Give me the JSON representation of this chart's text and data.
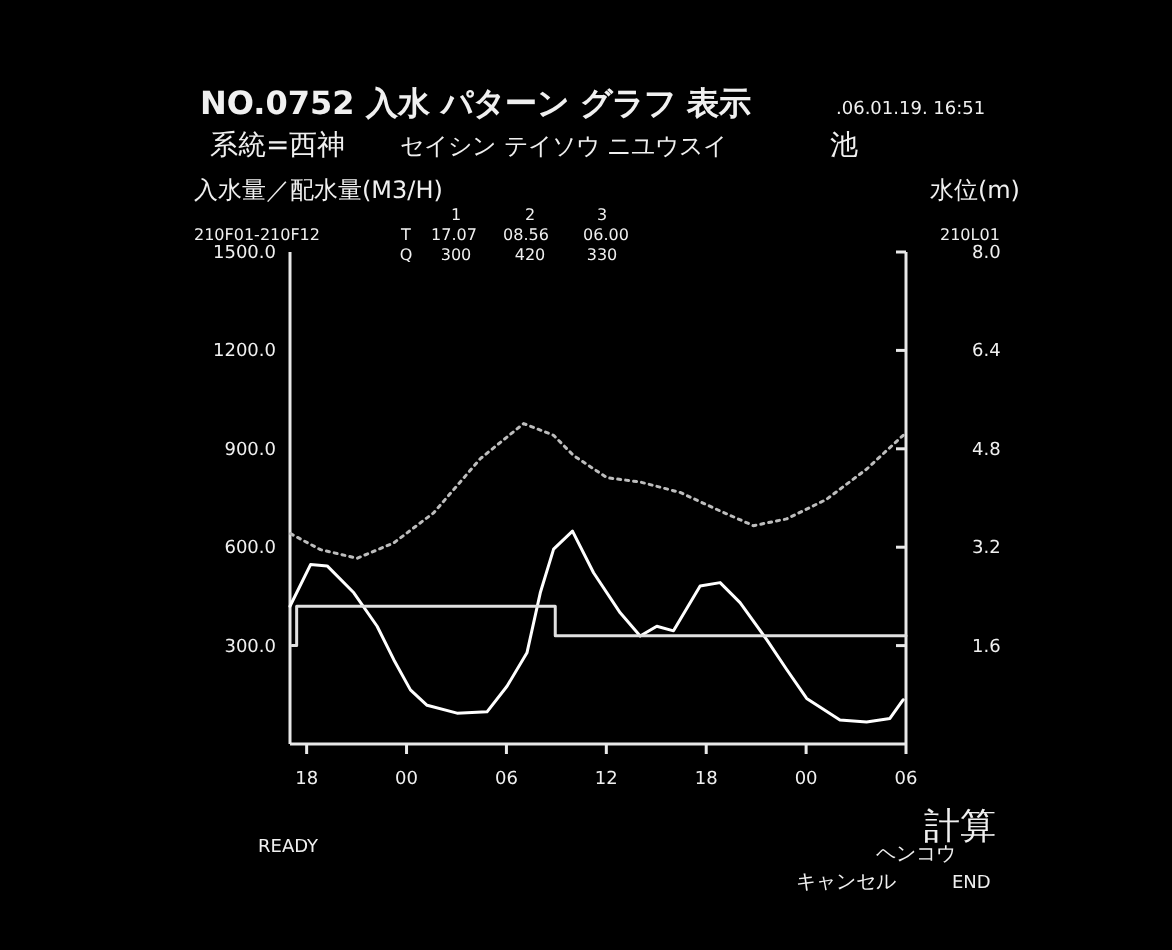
{
  "chart_data": {
    "type": "line",
    "title": "NO.0752 入水 パターン グラフ 表示",
    "subtitle": "系統=西神",
    "ylabel": "入水量／配水量(M3/H)",
    "y2label": "水位(m)",
    "xlim": [
      "--01-19T17:00",
      "--01-21T06:00"
    ],
    "xticks": [
      {
        "value": "--01-19T18:00",
        "label": "18"
      },
      {
        "value": "--01-20T00:00",
        "label": "00"
      },
      {
        "value": "--01-20T06:00",
        "label": "06"
      },
      {
        "value": "--01-20T12:00",
        "label": "12"
      },
      {
        "value": "--01-20T18:00",
        "label": "18"
      },
      {
        "value": "--01-21T00:00",
        "label": "00"
      },
      {
        "value": "--01-21T06:00",
        "label": "06"
      }
    ],
    "ylim": [
      0,
      1500
    ],
    "yticks": [
      {
        "value": 300,
        "label": "300.0"
      },
      {
        "value": 600,
        "label": "600.0"
      },
      {
        "value": 900,
        "label": "900.0"
      },
      {
        "value": 1200,
        "label": "1200.0"
      },
      {
        "value": 1500,
        "label": "1500.0"
      }
    ],
    "y2lim": [
      0,
      8
    ],
    "y2ticks": [
      1.6,
      3.2,
      4.8,
      6.4,
      {
        "value": 8,
        "label": "8.0"
      }
    ],
    "series": [
      {
        "type": "line",
        "color": "#ffffff",
        "x": [
          "--01-19T17:00",
          "--01-19T18:14",
          "--01-19T19:14",
          "--01-19T20:50",
          "--01-19T22:14",
          "--01-19T23:14",
          "--01-20T00:14",
          "--01-20T01:14",
          "--01-20T03:02",
          "--01-20T04:50",
          "--01-20T06:02",
          "--01-20T07:14",
          "--01-20T08:02",
          "--01-20T08:50",
          "--01-20T09:58",
          "--01-20T11:14",
          "--01-20T12:50",
          "--01-20T14:02",
          "--01-20T15:02",
          "--01-20T16:02",
          "--01-20T17:38",
          "--01-20T18:50",
          "--01-20T20:02",
          "--01-20T21:38",
          "--01-20T22:50",
          "--01-21T00:02",
          "--01-21T02:02",
          "--01-21T03:38",
          "--01-21T05:02",
          "--01-21T05:50"
        ],
        "values": [
          420,
          547,
          543,
          461,
          359,
          257,
          165,
          118,
          94,
          98,
          176,
          278,
          461,
          594,
          649,
          522,
          400,
          329,
          359,
          345,
          482,
          492,
          431,
          318,
          227,
          139,
          73,
          67,
          78,
          135
        ]
      },
      {
        "type": "step",
        "color": "#e0e0e0",
        "x": [
          "--01-19T17:07",
          "--01-19T17:24",
          "--01-20T08:56",
          "--01-21T06:00"
        ],
        "values": [
          300,
          420,
          330,
          330
        ]
      },
      {
        "type": "line",
        "axis": "y2",
        "line_style": "dotted",
        "color": "#bdbdbd",
        "x": [
          "--01-19T17:02",
          "--01-19T18:50",
          "--01-19T21:02",
          "--01-19T23:14",
          "--01-20T01:38",
          "--01-20T04:26",
          "--01-20T07:02",
          "--01-20T08:50",
          "--01-20T10:02",
          "--01-20T12:02",
          "--01-20T14:02",
          "--01-20T16:26",
          "--01-20T18:50",
          "--01-20T20:50",
          "--01-20T22:50",
          "--01-21T01:14",
          "--01-21T03:38",
          "--01-21T05:50"
        ],
        "values": [
          3.42,
          3.16,
          3.02,
          3.27,
          3.76,
          4.64,
          5.21,
          5.02,
          4.69,
          4.33,
          4.26,
          4.09,
          3.79,
          3.55,
          3.66,
          3.98,
          4.47,
          5.02
        ]
      }
    ],
    "annotations": [
      ".06.01.19. 16:51",
      "セイシン テイソウ ニユウスイ",
      "池",
      "210F01-210F12",
      "210L01",
      "1",
      "2",
      "3",
      "T",
      "17.07",
      "08.56",
      "06.00",
      "Q",
      "300",
      "420",
      "330",
      "READY",
      "計算",
      "ヘンコウ",
      "キャンセル",
      "END"
    ]
  }
}
